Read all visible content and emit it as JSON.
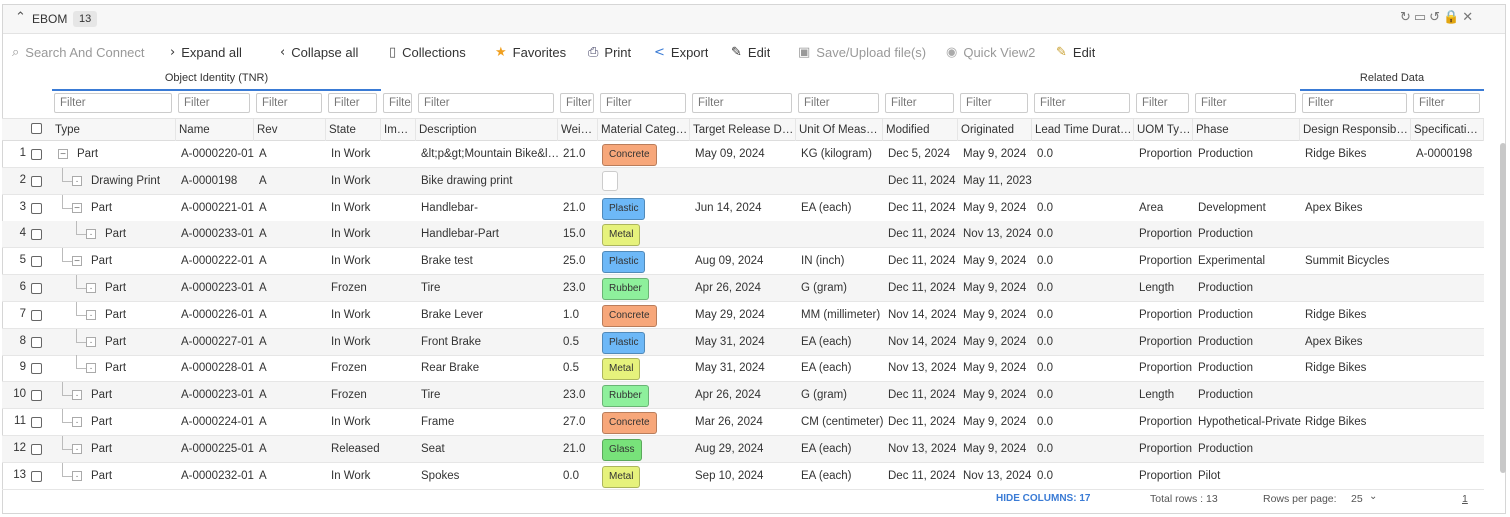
{
  "header": {
    "title": "EBOM",
    "count": "13"
  },
  "toolbar": [
    "Search And Connect",
    "Expand all",
    "Collapse all",
    "Collections",
    "Favorites",
    "Print",
    "Export",
    "Edit",
    "Save/Upload file(s)",
    "Quick View2",
    "Edit"
  ],
  "groups": [
    "Object Identity (TNR)",
    "Related Data"
  ],
  "columns": [
    {
      "label": "Type",
      "filter": "Filter"
    },
    {
      "label": "Name",
      "filter": "Filter"
    },
    {
      "label": "Rev",
      "filter": "Filter"
    },
    {
      "label": "State",
      "filter": "Filter"
    },
    {
      "label": "Im…",
      "filter": "Filter"
    },
    {
      "label": "Description",
      "filter": "Filter"
    },
    {
      "label": "Wei…",
      "filter": "Filter"
    },
    {
      "label": "Material Categ…",
      "filter": "Filter"
    },
    {
      "label": "Target Release D…",
      "filter": "Filter"
    },
    {
      "label": "Unit Of Meas…",
      "filter": "Filter"
    },
    {
      "label": "Modified",
      "filter": "Filter"
    },
    {
      "label": "Originated",
      "filter": "Filter"
    },
    {
      "label": "Lead Time Durat…",
      "filter": "Filter"
    },
    {
      "label": "UOM Ty…",
      "filter": "Filter"
    },
    {
      "label": "Phase",
      "filter": "Filter"
    },
    {
      "label": "Design Responsib…",
      "filter": "Filter"
    },
    {
      "label": "Specificati…",
      "filter": "Filter"
    }
  ],
  "rows": [
    {
      "num": "1",
      "cells": [
        "Part",
        "A-0000220-01",
        "A",
        "In Work",
        null,
        "&lt;p&gt;Mountain Bike&l…",
        "21.0",
        "Concrete",
        "May 09, 2024",
        "KG (kilogram)",
        "Dec 5, 2024",
        "May 9, 2024",
        "0.0",
        "Proportion",
        "Production",
        "Ridge Bikes",
        "A-0000198"
      ]
    },
    {
      "num": "2",
      "cells": [
        "Drawing Print",
        "A-0000198",
        "A",
        "In Work",
        null,
        "Bike drawing print",
        null,
        null,
        null,
        null,
        "Dec 11, 2024",
        "May 11, 2023",
        null,
        null,
        null,
        null,
        null
      ]
    },
    {
      "num": "3",
      "cells": [
        "Part",
        "A-0000221-01",
        "A",
        "In Work",
        null,
        "Handlebar-",
        "21.0",
        "Plastic",
        "Jun 14, 2024",
        "EA (each)",
        "Dec 11, 2024",
        "May 9, 2024",
        "0.0",
        "Area",
        "Development",
        "Apex Bikes",
        null
      ]
    },
    {
      "num": "4",
      "cells": [
        "Part",
        "A-0000233-01",
        "A",
        "In Work",
        null,
        "Handlebar-Part",
        "15.0",
        "Metal",
        null,
        null,
        "Dec 11, 2024",
        "Nov 13, 2024",
        "0.0",
        "Proportion",
        "Production",
        null,
        null
      ]
    },
    {
      "num": "5",
      "cells": [
        "Part",
        "A-0000222-01",
        "A",
        "In Work",
        null,
        "Brake test",
        "25.0",
        "Plastic",
        "Aug 09, 2024",
        "IN (inch)",
        "Dec 11, 2024",
        "May 9, 2024",
        "0.0",
        "Proportion",
        "Experimental",
        "Summit Bicycles",
        null
      ]
    },
    {
      "num": "6",
      "cells": [
        "Part",
        "A-0000223-01",
        "A",
        "Frozen",
        null,
        "Tire",
        "23.0",
        "Rubber",
        "Apr 26, 2024",
        "G (gram)",
        "Dec 11, 2024",
        "May 9, 2024",
        "0.0",
        "Length",
        "Production",
        null,
        null
      ]
    },
    {
      "num": "7",
      "cells": [
        "Part",
        "A-0000226-01",
        "A",
        "In Work",
        null,
        "Brake Lever",
        "1.0",
        "Concrete",
        "May 29, 2024",
        "MM (millimeter)",
        "Nov 14, 2024",
        "May 9, 2024",
        "0.0",
        "Proportion",
        "Production",
        "Ridge Bikes",
        null
      ]
    },
    {
      "num": "8",
      "cells": [
        "Part",
        "A-0000227-01",
        "A",
        "In Work",
        null,
        "Front Brake",
        "0.5",
        "Plastic",
        "May 31, 2024",
        "EA (each)",
        "Nov 14, 2024",
        "May 9, 2024",
        "0.0",
        "Proportion",
        "Production",
        "Apex Bikes",
        null
      ]
    },
    {
      "num": "9",
      "cells": [
        "Part",
        "A-0000228-01",
        "A",
        "Frozen",
        null,
        "Rear Brake",
        "0.5",
        "Metal",
        "May 31, 2024",
        "EA (each)",
        "Nov 13, 2024",
        "May 9, 2024",
        "0.0",
        "Proportion",
        "Production",
        "Ridge Bikes",
        null
      ]
    },
    {
      "num": "10",
      "cells": [
        "Part",
        "A-0000223-01",
        "A",
        "Frozen",
        null,
        "Tire",
        "23.0",
        "Rubber",
        "Apr 26, 2024",
        "G (gram)",
        "Dec 11, 2024",
        "May 9, 2024",
        "0.0",
        "Length",
        "Production",
        null,
        null
      ]
    },
    {
      "num": "11",
      "cells": [
        "Part",
        "A-0000224-01",
        "A",
        "In Work",
        null,
        "Frame",
        "27.0",
        "Concrete",
        "Mar 26, 2024",
        "CM (centimeter)",
        "Dec 11, 2024",
        "May 9, 2024",
        "0.0",
        "Proportion",
        "Hypothetical-Private",
        "Ridge Bikes",
        null
      ]
    },
    {
      "num": "12",
      "cells": [
        "Part",
        "A-0000225-01",
        "A",
        "Released",
        null,
        "Seat",
        "21.0",
        "Glass",
        "Aug 29, 2024",
        "EA (each)",
        "Nov 13, 2024",
        "May 9, 2024",
        "0.0",
        "Proportion",
        "Production",
        null,
        null
      ]
    },
    {
      "num": "13",
      "cells": [
        "Part",
        "A-0000232-01",
        "A",
        "In Work",
        null,
        "Spokes",
        "0.0",
        "Metal",
        "Sep 10, 2024",
        "EA (each)",
        "Dec 11, 2024",
        "Nov 13, 2024",
        "0.0",
        "Proportion",
        "Pilot",
        null,
        null
      ]
    }
  ],
  "footer": {
    "hide_columns": "HIDE COLUMNS: 17",
    "total_rows": "Total rows : 13",
    "rows_per_page_label": "Rows per page:",
    "rows_per_page": "25",
    "page": "1"
  }
}
